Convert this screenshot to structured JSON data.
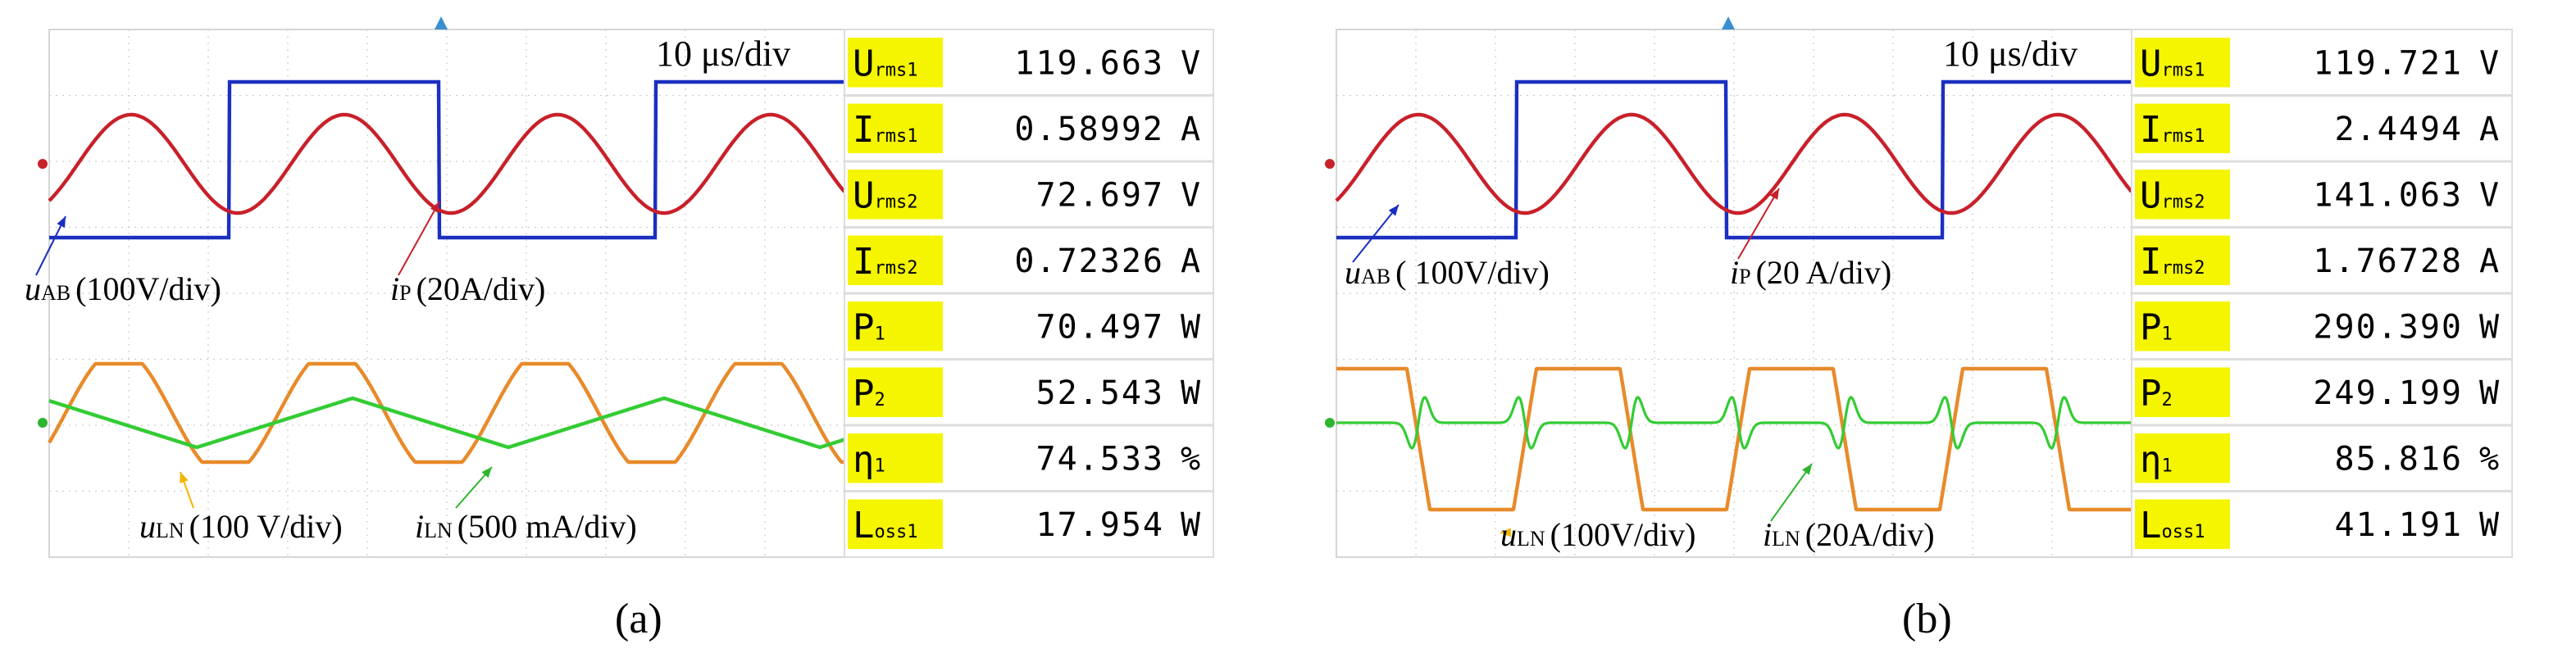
{
  "panels": [
    {
      "timebase": "10 μs/div",
      "annotations": [
        {
          "symbol": "u",
          "sub": "AB",
          "scale": "(100V/div)"
        },
        {
          "symbol": "i",
          "sub": "P",
          "scale": "(20A/div)"
        },
        {
          "symbol": "u",
          "sub": "LN",
          "scale": "(100 V/div)"
        },
        {
          "symbol": "i",
          "sub": "LN",
          "scale": "(500 mA/div)"
        }
      ],
      "measurements": [
        {
          "name": "U",
          "sub": "rms1",
          "value": "119.663",
          "unit": "V"
        },
        {
          "name": "I",
          "sub": "rms1",
          "value": "0.58992",
          "unit": "A"
        },
        {
          "name": "U",
          "sub": "rms2",
          "value": "72.697",
          "unit": "V"
        },
        {
          "name": "I",
          "sub": "rms2",
          "value": "0.72326",
          "unit": "A"
        },
        {
          "name": "P",
          "sub": "1",
          "value": "70.497",
          "unit": "W"
        },
        {
          "name": "P",
          "sub": "2",
          "value": "52.543",
          "unit": "W"
        },
        {
          "name": "η",
          "sub": "1",
          "value": "74.533",
          "unit": "%"
        },
        {
          "name": "L",
          "sub": "oss1",
          "value": "17.954",
          "unit": "W"
        }
      ],
      "caption": "(a)"
    },
    {
      "timebase": "10 μs/div",
      "annotations": [
        {
          "symbol": "u",
          "sub": "AB",
          "scale": "( 100V/div)"
        },
        {
          "symbol": "i",
          "sub": "P",
          "scale": "(20 A/div)"
        },
        {
          "symbol": "u",
          "sub": "LN",
          "scale": "(100V/div)"
        },
        {
          "symbol": "i",
          "sub": "LN",
          "scale": "(20A/div)"
        }
      ],
      "measurements": [
        {
          "name": "U",
          "sub": "rms1",
          "value": "119.721",
          "unit": "V"
        },
        {
          "name": "I",
          "sub": "rms1",
          "value": "2.4494",
          "unit": "A"
        },
        {
          "name": "U",
          "sub": "rms2",
          "value": "141.063",
          "unit": "V"
        },
        {
          "name": "I",
          "sub": "rms2",
          "value": "1.76728",
          "unit": "A"
        },
        {
          "name": "P",
          "sub": "1",
          "value": "290.390",
          "unit": "W"
        },
        {
          "name": "P",
          "sub": "2",
          "value": "249.199",
          "unit": "W"
        },
        {
          "name": "η",
          "sub": "1",
          "value": "85.816",
          "unit": "%"
        },
        {
          "name": "L",
          "sub": "oss1",
          "value": "41.191",
          "unit": "W"
        }
      ],
      "caption": "(b)"
    }
  ]
}
